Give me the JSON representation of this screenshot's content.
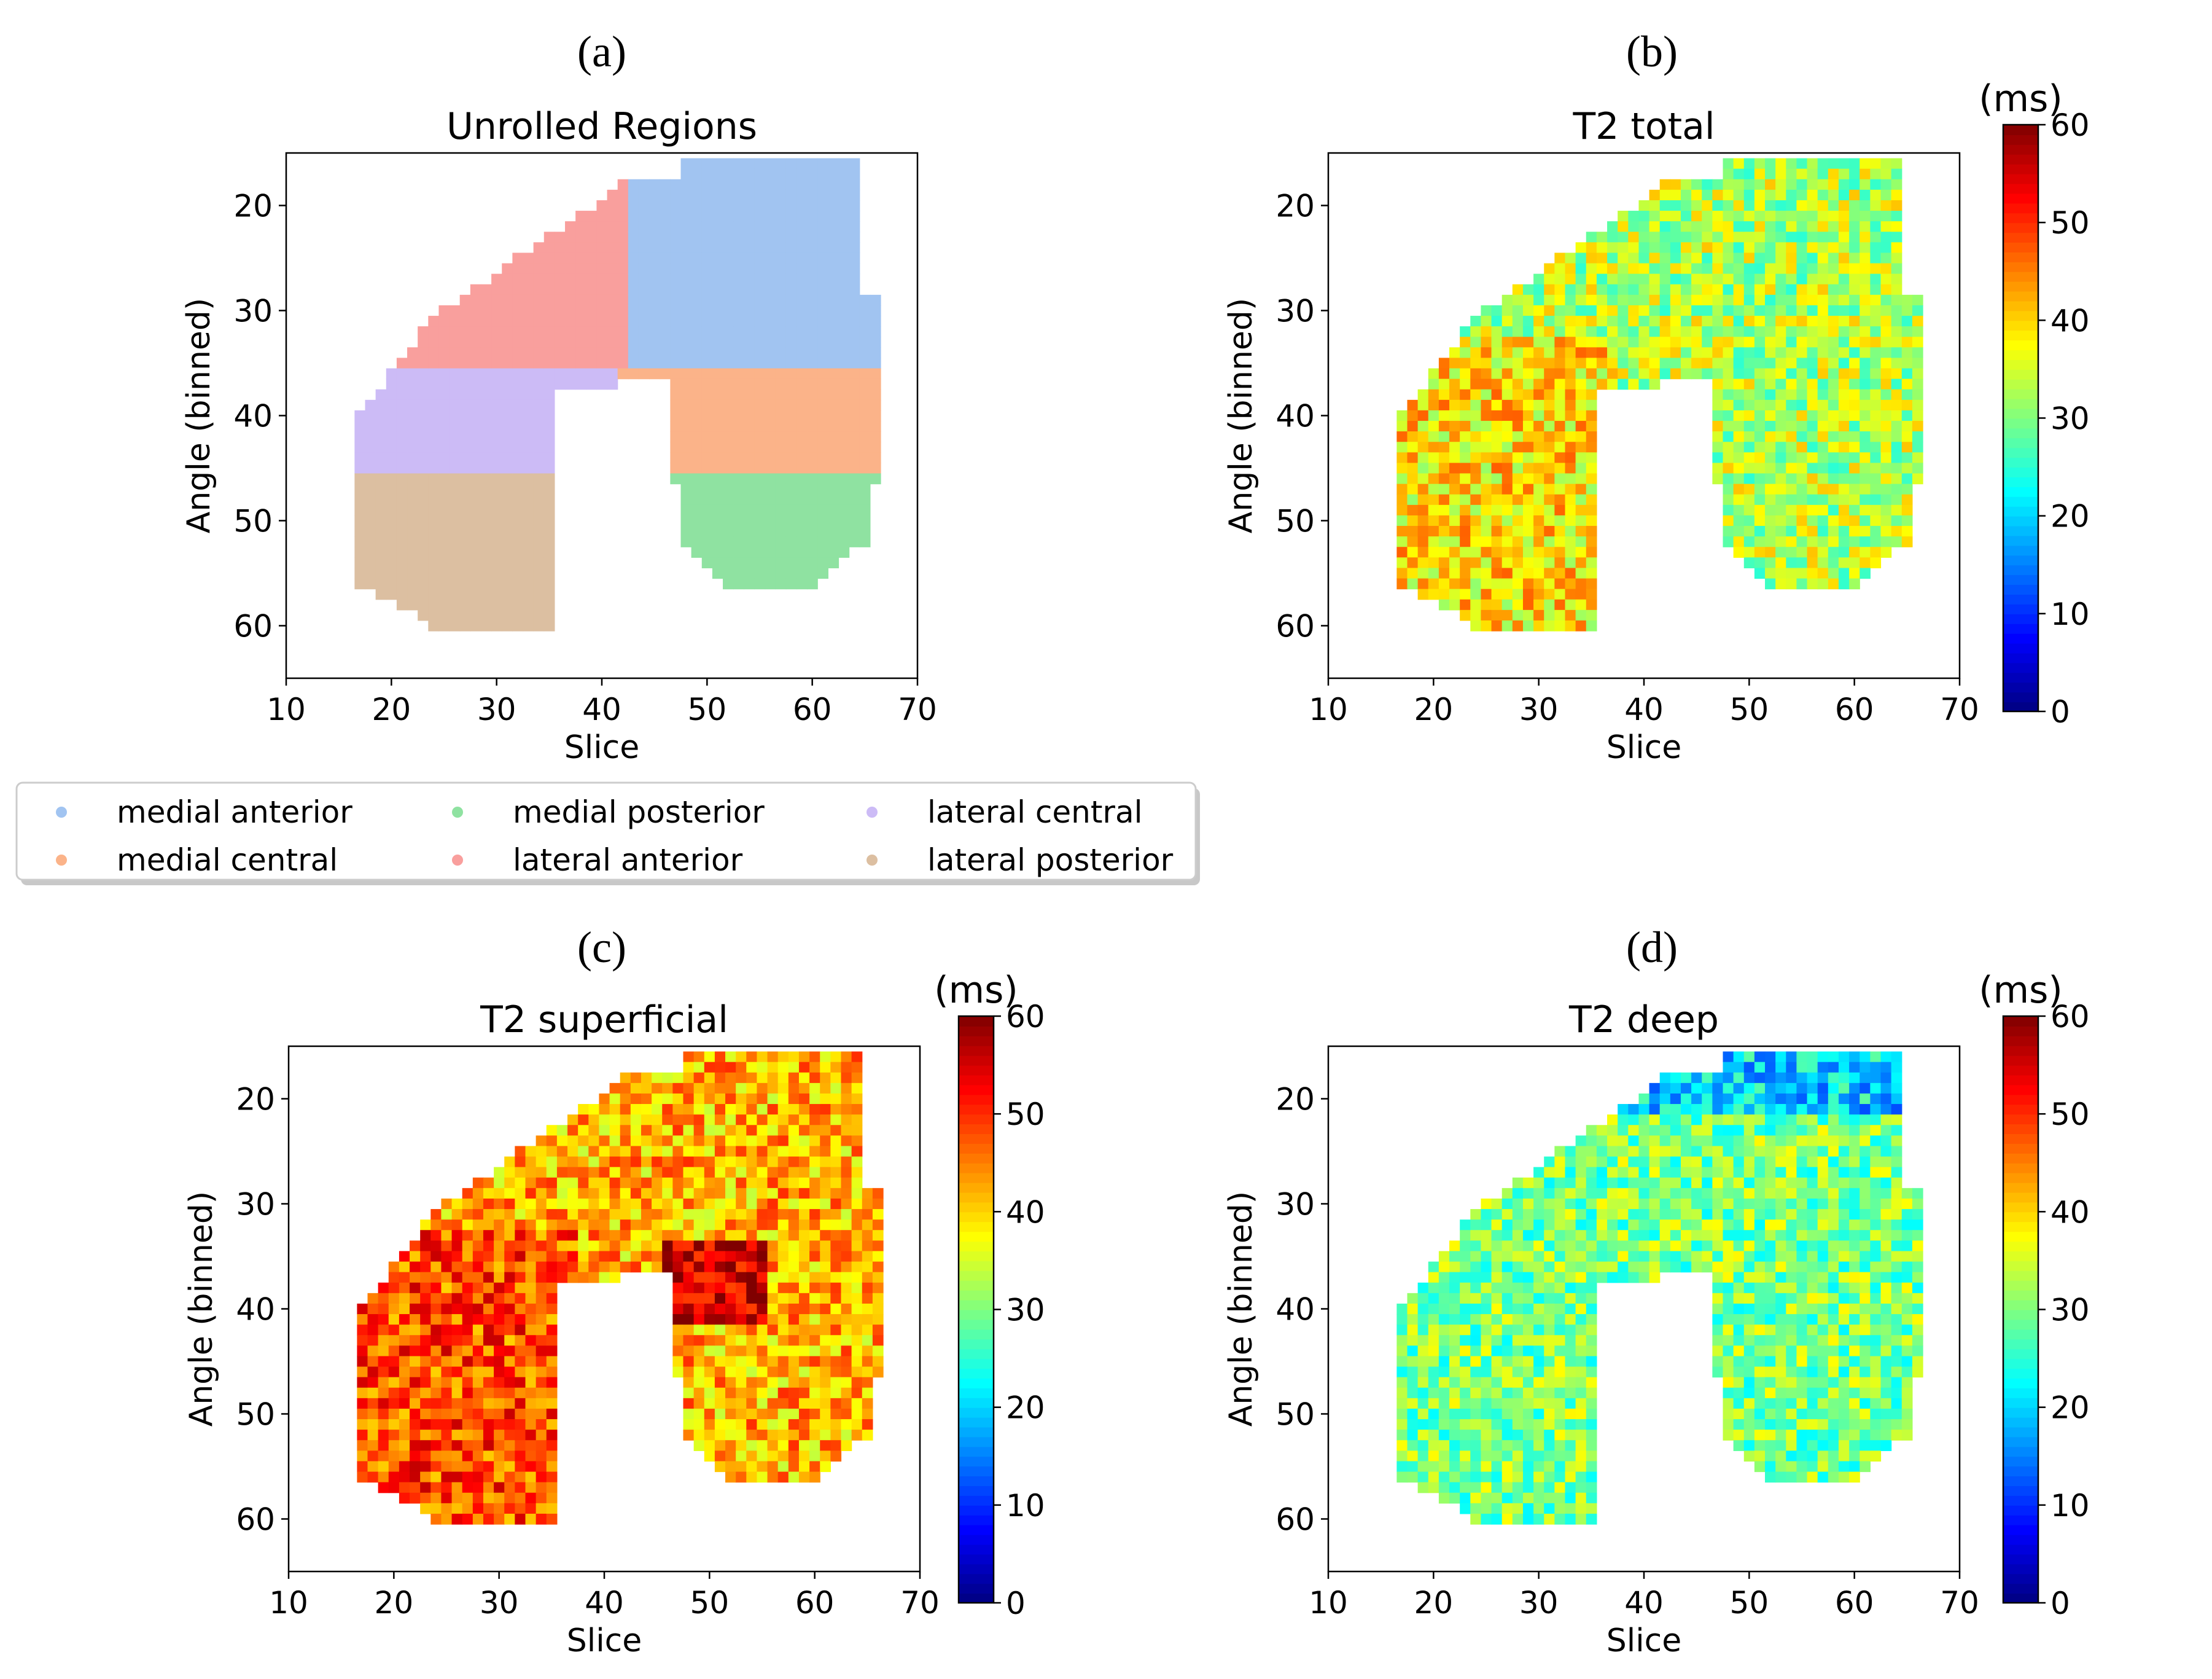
{
  "figure": {
    "panel_labels": [
      "(a)",
      "(b)",
      "(c)",
      "(d)"
    ],
    "colors": {
      "medial_anterior": "#a1c4f1",
      "medial_central": "#fbb389",
      "medial_posterior": "#8fe2a1",
      "lateral_anterior": "#f99f9d",
      "lateral_central": "#ccbbf6",
      "lateral_posterior": "#dcbfa1"
    }
  },
  "chart_data": [
    {
      "type": "region-map",
      "title": "Unrolled Regions",
      "xlabel": "Slice",
      "ylabel": "Angle (binned)",
      "xlim": [
        10,
        70
      ],
      "ylim": [
        65,
        15
      ],
      "xticks": [
        10,
        20,
        30,
        40,
        50,
        60,
        70
      ],
      "yticks": [
        20,
        30,
        40,
        50,
        60
      ],
      "legend_position": "bottom",
      "legend": [
        "medial anterior",
        "medial posterior",
        "lateral central",
        "medial central",
        "lateral anterior",
        "lateral posterior"
      ],
      "regions": [
        {
          "name": "lateral anterior",
          "x_range": [
            17,
            42
          ],
          "y_range": [
            18,
            36
          ]
        },
        {
          "name": "medial anterior",
          "x_range": [
            42,
            65
          ],
          "y_range": [
            16,
            36
          ]
        },
        {
          "name": "lateral central",
          "x_range": [
            17,
            37
          ],
          "y_range": [
            36,
            46
          ]
        },
        {
          "name": "medial central",
          "x_range": [
            47,
            66
          ],
          "y_range": [
            36,
            46
          ]
        },
        {
          "name": "lateral posterior",
          "x_range": [
            17,
            35
          ],
          "y_range": [
            46,
            60
          ]
        },
        {
          "name": "medial posterior",
          "x_range": [
            48,
            65
          ],
          "y_range": [
            46,
            56
          ]
        }
      ]
    },
    {
      "type": "heatmap",
      "title": "T2 total",
      "xlabel": "Slice",
      "ylabel": "Angle (binned)",
      "xlim": [
        10,
        70
      ],
      "ylim": [
        65,
        15
      ],
      "xticks": [
        10,
        20,
        30,
        40,
        50,
        60,
        70
      ],
      "yticks": [
        20,
        30,
        40,
        50,
        60
      ],
      "colorbar": {
        "label": "(ms)",
        "min": 0,
        "max": 60,
        "ticks": [
          0,
          10,
          20,
          30,
          40,
          50,
          60
        ]
      },
      "typical_value_ms": 33
    },
    {
      "type": "heatmap",
      "title": "T2 superficial",
      "xlabel": "Slice",
      "ylabel": "Angle (binned)",
      "xlim": [
        10,
        70
      ],
      "ylim": [
        65,
        15
      ],
      "xticks": [
        10,
        20,
        30,
        40,
        50,
        60,
        70
      ],
      "yticks": [
        20,
        30,
        40,
        50,
        60
      ],
      "colorbar": {
        "label": "(ms)",
        "min": 0,
        "max": 60,
        "ticks": [
          0,
          10,
          20,
          30,
          40,
          50,
          60
        ]
      },
      "typical_value_ms": 42
    },
    {
      "type": "heatmap",
      "title": "T2 deep",
      "xlabel": "Slice",
      "ylabel": "Angle (binned)",
      "xlim": [
        10,
        70
      ],
      "ylim": [
        65,
        15
      ],
      "xticks": [
        10,
        20,
        30,
        40,
        50,
        60,
        70
      ],
      "yticks": [
        20,
        30,
        40,
        50,
        60
      ],
      "colorbar": {
        "label": "(ms)",
        "min": 0,
        "max": 60,
        "ticks": [
          0,
          10,
          20,
          30,
          40,
          50,
          60
        ]
      },
      "typical_value_ms": 30
    }
  ]
}
